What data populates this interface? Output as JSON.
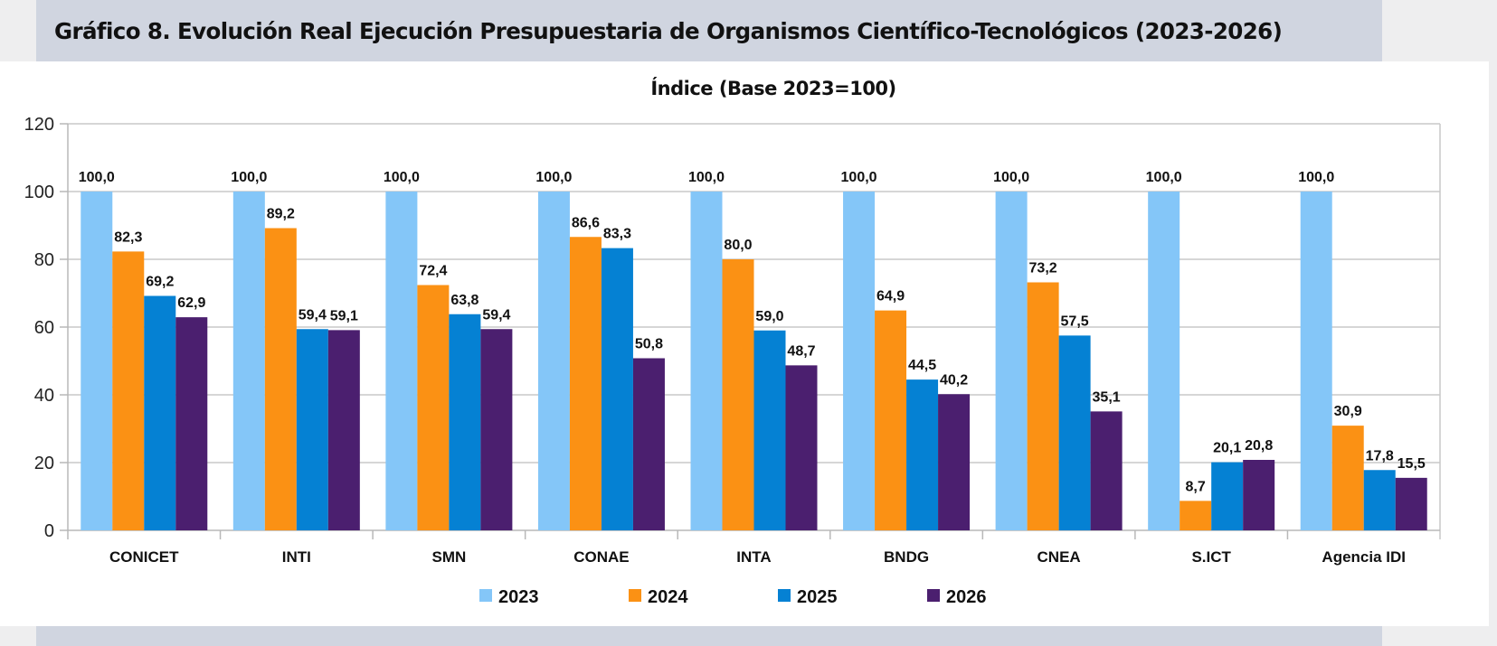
{
  "header": {
    "title": "Gráfico 8. Evolución Real Ejecución Presupuestaria de Organismos Científico-Tecnológicos (2023-2026)"
  },
  "chart_data": {
    "type": "bar",
    "title": "Índice (Base 2023=100)",
    "xlabel": "",
    "ylabel": "",
    "ylim": [
      0,
      120
    ],
    "yticks": [
      0,
      20,
      40,
      60,
      80,
      100,
      120
    ],
    "grid": true,
    "legend_position": "bottom",
    "categories": [
      "CONICET",
      "INTI",
      "SMN",
      "CONAE",
      "INTA",
      "BNDG",
      "CNEA",
      "S.ICT",
      "Agencia IDI"
    ],
    "series": [
      {
        "name": "2023",
        "color": "#84c6f8",
        "values": [
          100.0,
          100.0,
          100.0,
          100.0,
          100.0,
          100.0,
          100.0,
          100.0,
          100.0
        ],
        "labels": [
          "100,0",
          "100,0",
          "100,0",
          "100,0",
          "100,0",
          "100,0",
          "100,0",
          "100,0",
          "100,0"
        ]
      },
      {
        "name": "2024",
        "color": "#fb9114",
        "values": [
          82.3,
          89.2,
          72.4,
          86.6,
          80.0,
          64.9,
          73.2,
          8.7,
          30.9
        ],
        "labels": [
          "82,3",
          "89,2",
          "72,4",
          "86,6",
          "80,0",
          "64,9",
          "73,2",
          "8,7",
          "30,9"
        ]
      },
      {
        "name": "2025",
        "color": "#0581d3",
        "values": [
          69.2,
          59.4,
          63.8,
          83.3,
          59.0,
          44.5,
          57.5,
          20.1,
          17.8
        ],
        "labels": [
          "69,2",
          "59,4",
          "63,8",
          "83,3",
          "59,0",
          "44,5",
          "57,5",
          "20,1",
          "17,8"
        ]
      },
      {
        "name": "2026",
        "color": "#4b1f6f",
        "values": [
          62.9,
          59.1,
          59.4,
          50.8,
          48.7,
          40.2,
          35.1,
          20.8,
          15.5
        ],
        "labels": [
          "62,9",
          "59,1",
          "59,4",
          "50,8",
          "48,7",
          "40,2",
          "35,1",
          "20,8",
          "15,5"
        ]
      }
    ]
  }
}
